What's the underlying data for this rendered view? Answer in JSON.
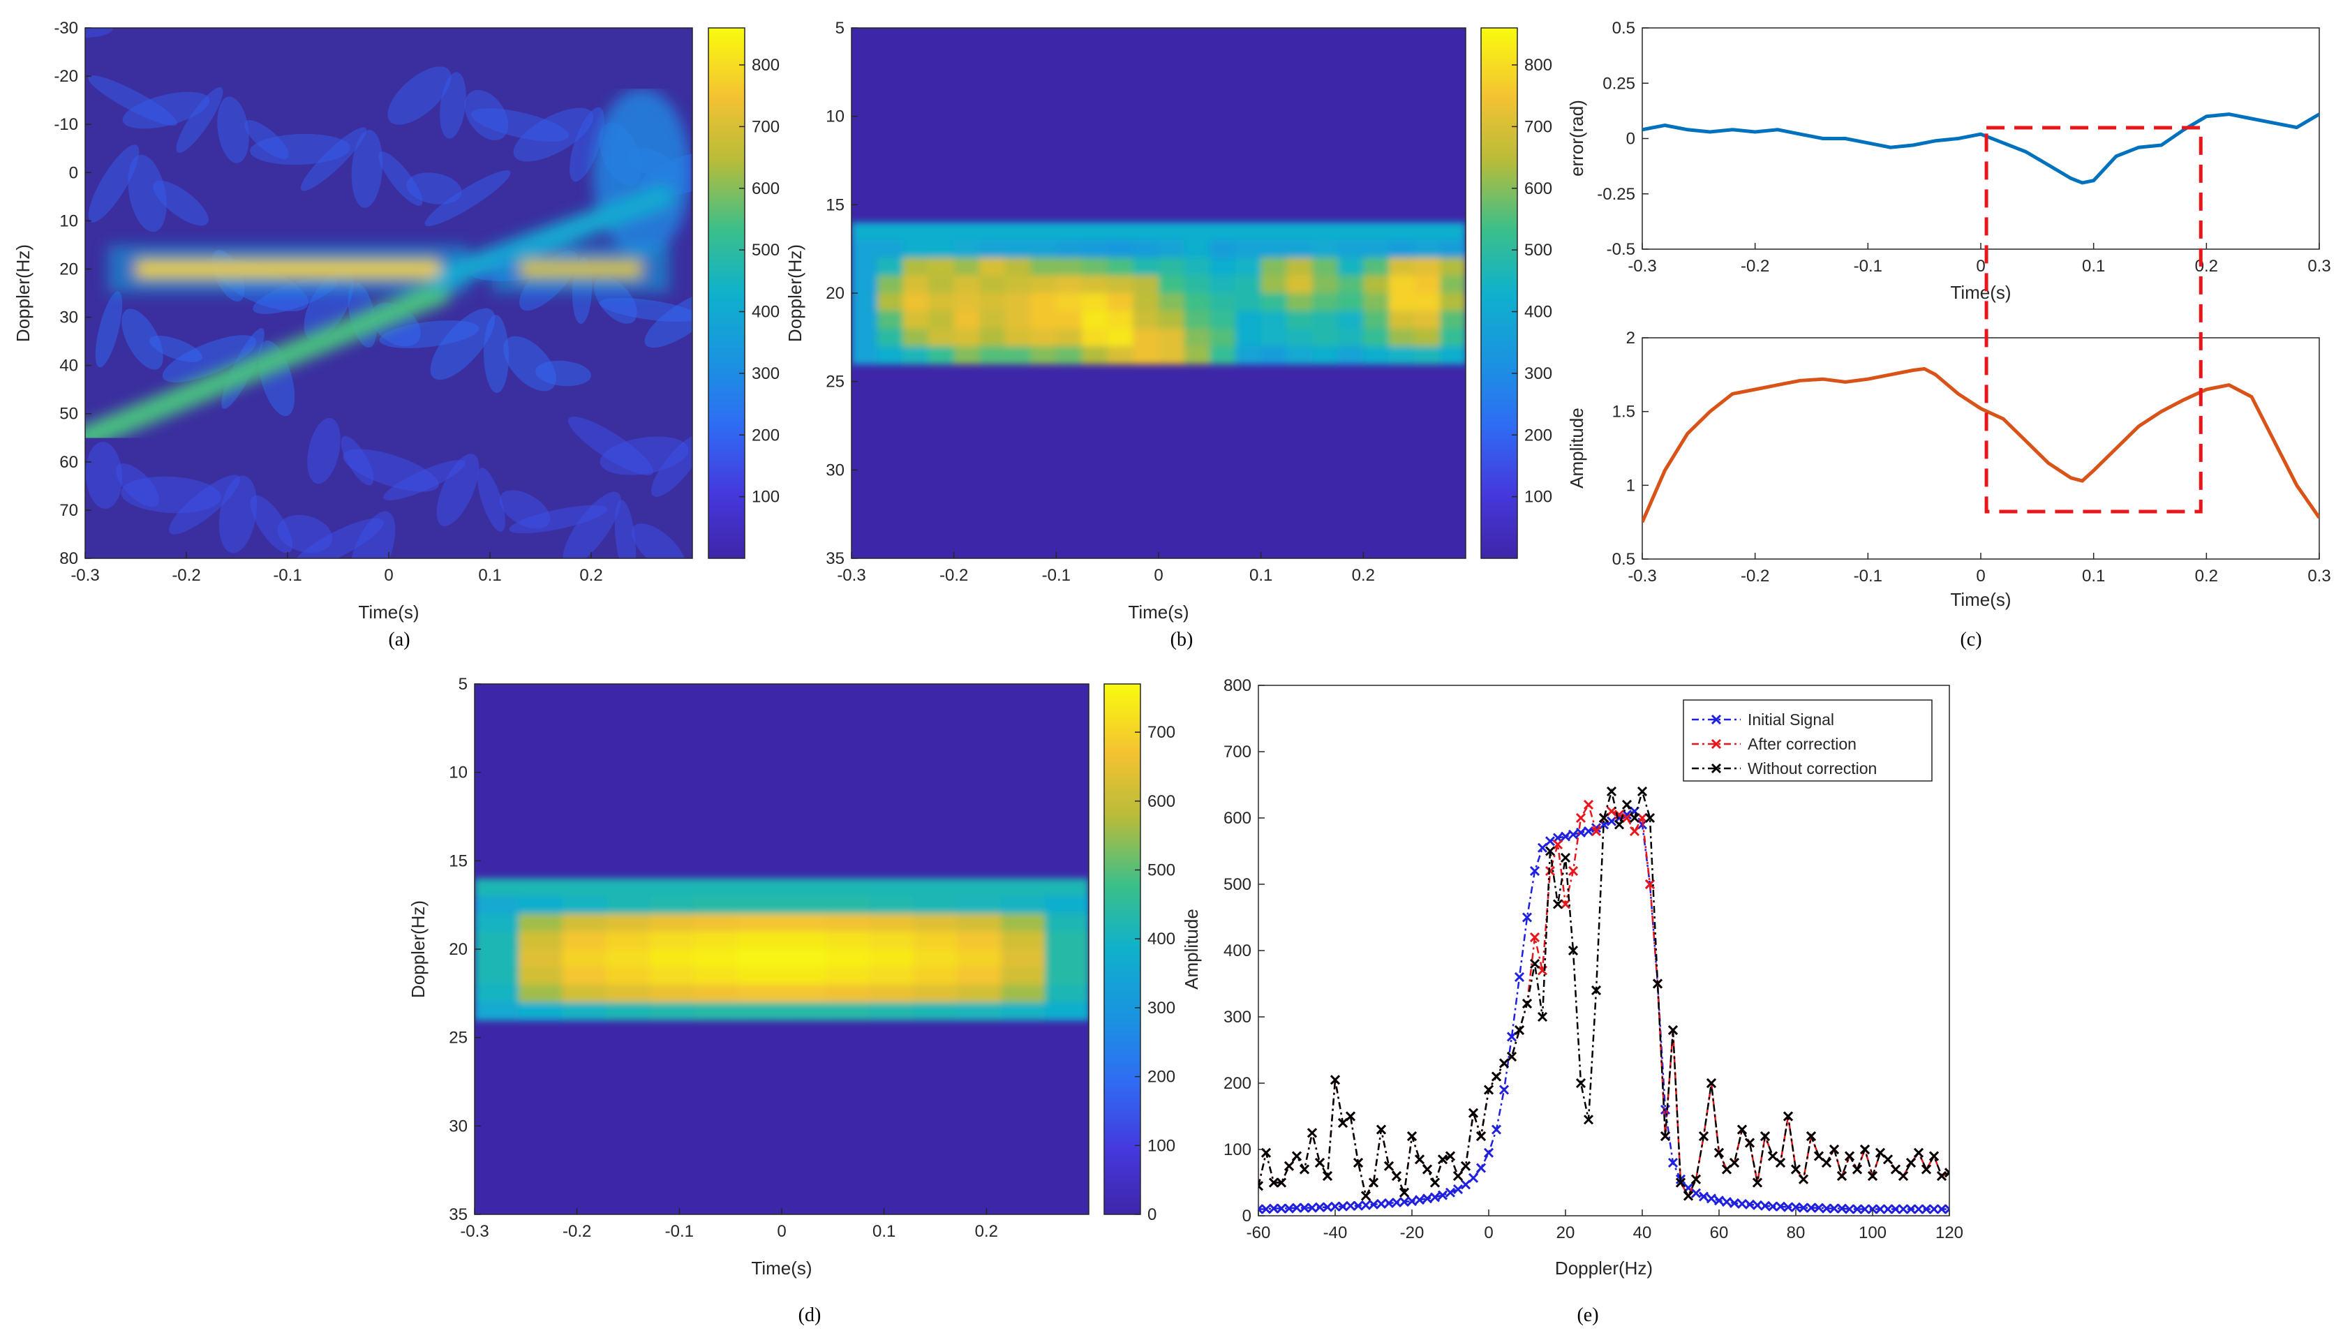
{
  "chart_data": [
    {
      "panel": "a",
      "caption": "(a)",
      "type": "heatmap",
      "xlabel": "Time(s)",
      "ylabel": "Doppler(Hz)",
      "xlim": [
        -0.3,
        0.3
      ],
      "ylim": [
        -30,
        80
      ],
      "xticks": [
        "-0.3",
        "-0.2",
        "-0.1",
        "0",
        "0.1",
        "0.2"
      ],
      "yticks": [
        "-30",
        "-20",
        "-10",
        "0",
        "10",
        "20",
        "30",
        "40",
        "50",
        "60",
        "70",
        "80"
      ],
      "colorbar": {
        "min": 0,
        "max": 860,
        "ticks": [
          "100",
          "200",
          "300",
          "400",
          "500",
          "600",
          "700",
          "800"
        ]
      },
      "features": [
        {
          "name": "main-line",
          "doppler_hz": 20,
          "t_range": [
            -0.25,
            0.05
          ],
          "level": 800
        },
        {
          "name": "chirp-branch",
          "from": [
            -0.3,
            55
          ],
          "to": [
            0.05,
            25
          ],
          "level": 550
        },
        {
          "name": "right-branch",
          "from": [
            0.05,
            22
          ],
          "to": [
            0.27,
            5
          ],
          "level": 400
        },
        {
          "name": "right-line",
          "doppler_hz": 20,
          "t_range": [
            0.13,
            0.25
          ],
          "level": 700
        }
      ]
    },
    {
      "panel": "b",
      "caption": "(b)",
      "type": "heatmap",
      "xlabel": "Time(s)",
      "ylabel": "Doppler(Hz)",
      "xlim": [
        -0.3,
        0.3
      ],
      "ylim": [
        5,
        35
      ],
      "xticks": [
        "-0.3",
        "-0.2",
        "-0.1",
        "0",
        "0.1",
        "0.2"
      ],
      "yticks": [
        "5",
        "10",
        "15",
        "20",
        "25",
        "30",
        "35"
      ],
      "colorbar": {
        "min": 0,
        "max": 860,
        "ticks": [
          "100",
          "200",
          "300",
          "400",
          "500",
          "600",
          "700",
          "800"
        ]
      },
      "band_doppler_hz": [
        16,
        24
      ],
      "rows": [
        {
          "doppler_hz": 17,
          "values": [
            380,
            380,
            420,
            420,
            400,
            380,
            380,
            380,
            360,
            350,
            340,
            360,
            380,
            420,
            360,
            380,
            380,
            380,
            400,
            380,
            380,
            360,
            380,
            360
          ]
        },
        {
          "doppler_hz": 18,
          "values": [
            380,
            460,
            640,
            660,
            620,
            700,
            650,
            600,
            600,
            580,
            550,
            480,
            500,
            460,
            420,
            440,
            600,
            650,
            580,
            450,
            560,
            700,
            720,
            640
          ]
        },
        {
          "doppler_hz": 19,
          "values": [
            380,
            600,
            700,
            650,
            700,
            660,
            680,
            700,
            720,
            700,
            680,
            650,
            540,
            500,
            460,
            480,
            620,
            700,
            600,
            560,
            640,
            780,
            760,
            600
          ]
        },
        {
          "doppler_hz": 20,
          "values": [
            380,
            640,
            740,
            700,
            720,
            700,
            720,
            760,
            780,
            800,
            760,
            660,
            600,
            540,
            500,
            480,
            520,
            600,
            560,
            540,
            600,
            780,
            780,
            640
          ]
        },
        {
          "doppler_hz": 21,
          "values": [
            380,
            560,
            700,
            660,
            740,
            680,
            720,
            760,
            760,
            820,
            800,
            680,
            640,
            560,
            520,
            420,
            440,
            500,
            480,
            440,
            560,
            700,
            720,
            560
          ]
        },
        {
          "doppler_hz": 22,
          "values": [
            380,
            500,
            620,
            680,
            700,
            640,
            700,
            720,
            700,
            800,
            820,
            740,
            720,
            600,
            560,
            420,
            440,
            460,
            480,
            460,
            520,
            620,
            640,
            520
          ]
        },
        {
          "doppler_hz": 23,
          "values": [
            380,
            420,
            460,
            520,
            600,
            560,
            560,
            600,
            580,
            640,
            700,
            740,
            720,
            620,
            520,
            380,
            360,
            400,
            420,
            380,
            420,
            440,
            460,
            420
          ]
        }
      ]
    },
    {
      "panel": "c",
      "caption": "(c)",
      "subplots": [
        {
          "type": "line",
          "ylabel": "error(rad)",
          "xlabel": "Time(s)",
          "xlim": [
            -0.3,
            0.3
          ],
          "ylim": [
            -0.5,
            0.5
          ],
          "xticks": [
            "-0.3",
            "-0.2",
            "-0.1",
            "0",
            "0.1",
            "0.2",
            "0.3"
          ],
          "yticks": [
            "-0.5",
            "-0.25",
            "0",
            "0.25",
            "0.5"
          ],
          "color": "#0072BD",
          "x": [
            -0.3,
            -0.28,
            -0.26,
            -0.24,
            -0.22,
            -0.2,
            -0.18,
            -0.16,
            -0.14,
            -0.12,
            -0.1,
            -0.08,
            -0.06,
            -0.04,
            -0.02,
            0,
            0.02,
            0.04,
            0.06,
            0.08,
            0.09,
            0.1,
            0.12,
            0.14,
            0.16,
            0.18,
            0.2,
            0.22,
            0.24,
            0.26,
            0.28,
            0.3
          ],
          "y": [
            0.04,
            0.06,
            0.04,
            0.03,
            0.04,
            0.03,
            0.04,
            0.02,
            0.0,
            0.0,
            -0.02,
            -0.04,
            -0.03,
            -0.01,
            0.0,
            0.02,
            -0.02,
            -0.06,
            -0.12,
            -0.18,
            -0.2,
            -0.19,
            -0.08,
            -0.04,
            -0.03,
            0.04,
            0.1,
            0.11,
            0.09,
            0.07,
            0.05,
            0.11
          ]
        },
        {
          "type": "line",
          "ylabel": "Amplitude",
          "xlabel": "Time(s)",
          "xlim": [
            -0.3,
            0.3
          ],
          "ylim": [
            0.5,
            2
          ],
          "xticks": [
            "-0.3",
            "-0.2",
            "-0.1",
            "0",
            "0.1",
            "0.2",
            "0.3"
          ],
          "yticks": [
            "0.5",
            "1",
            "1.5",
            "2"
          ],
          "color": "#D95319",
          "x": [
            -0.3,
            -0.28,
            -0.26,
            -0.24,
            -0.22,
            -0.2,
            -0.18,
            -0.16,
            -0.14,
            -0.12,
            -0.1,
            -0.08,
            -0.06,
            -0.05,
            -0.04,
            -0.02,
            0,
            0.02,
            0.04,
            0.06,
            0.08,
            0.09,
            0.1,
            0.12,
            0.14,
            0.16,
            0.18,
            0.2,
            0.22,
            0.24,
            0.26,
            0.28,
            0.3
          ],
          "y": [
            0.75,
            1.1,
            1.35,
            1.5,
            1.62,
            1.65,
            1.68,
            1.71,
            1.72,
            1.7,
            1.72,
            1.75,
            1.78,
            1.79,
            1.75,
            1.62,
            1.52,
            1.45,
            1.3,
            1.15,
            1.05,
            1.03,
            1.1,
            1.25,
            1.4,
            1.5,
            1.58,
            1.65,
            1.68,
            1.6,
            1.3,
            1.0,
            0.78
          ]
        }
      ],
      "annotation": {
        "type": "dashed-rectangle",
        "color": "#E8161A",
        "t_range": [
          0.005,
          0.195
        ]
      }
    },
    {
      "panel": "d",
      "caption": "(d)",
      "type": "heatmap",
      "xlabel": "Time(s)",
      "ylabel": "Doppler(Hz)",
      "xlim": [
        -0.3,
        0.3
      ],
      "ylim": [
        5,
        35
      ],
      "xticks": [
        "-0.3",
        "-0.2",
        "-0.1",
        "0",
        "0.1",
        "0.2"
      ],
      "yticks": [
        "5",
        "10",
        "15",
        "20",
        "25",
        "30",
        "35"
      ],
      "colorbar": {
        "min": 0,
        "max": 770,
        "ticks": [
          "0",
          "100",
          "200",
          "300",
          "400",
          "500",
          "600",
          "700"
        ]
      },
      "band_doppler_hz": [
        16,
        24
      ],
      "rows": [
        {
          "doppler_hz": 17,
          "values": [
            360,
            380,
            400,
            420,
            430,
            440,
            440,
            440,
            440,
            430,
            420,
            410,
            400,
            380
          ]
        },
        {
          "doppler_hz": 18,
          "values": [
            400,
            560,
            620,
            640,
            660,
            670,
            680,
            680,
            670,
            660,
            640,
            620,
            560,
            420
          ]
        },
        {
          "doppler_hz": 19,
          "values": [
            420,
            620,
            680,
            700,
            720,
            730,
            740,
            740,
            730,
            720,
            700,
            680,
            620,
            440
          ]
        },
        {
          "doppler_hz": 20,
          "values": [
            420,
            640,
            700,
            720,
            740,
            750,
            760,
            760,
            750,
            740,
            720,
            700,
            640,
            440
          ]
        },
        {
          "doppler_hz": 21,
          "values": [
            420,
            620,
            680,
            700,
            720,
            730,
            740,
            740,
            730,
            720,
            700,
            680,
            620,
            440
          ]
        },
        {
          "doppler_hz": 22,
          "values": [
            400,
            560,
            620,
            640,
            660,
            670,
            680,
            680,
            670,
            660,
            640,
            620,
            560,
            420
          ]
        },
        {
          "doppler_hz": 23,
          "values": [
            360,
            380,
            400,
            420,
            430,
            440,
            440,
            440,
            440,
            430,
            420,
            410,
            400,
            380
          ]
        }
      ]
    },
    {
      "panel": "e",
      "caption": "(e)",
      "type": "line",
      "xlabel": "Doppler(Hz)",
      "ylabel": "Amplitude",
      "xlim": [
        -60,
        120
      ],
      "ylim": [
        0,
        800
      ],
      "xticks": [
        "-60",
        "-40",
        "-20",
        "0",
        "20",
        "40",
        "60",
        "80",
        "100",
        "120"
      ],
      "yticks": [
        "0",
        "100",
        "200",
        "300",
        "400",
        "500",
        "600",
        "700",
        "800"
      ],
      "x": [
        -60,
        -58,
        -56,
        -54,
        -52,
        -50,
        -48,
        -46,
        -44,
        -42,
        -40,
        -38,
        -36,
        -34,
        -32,
        -30,
        -28,
        -26,
        -24,
        -22,
        -20,
        -18,
        -16,
        -14,
        -12,
        -10,
        -8,
        -6,
        -4,
        -2,
        0,
        2,
        4,
        6,
        8,
        10,
        12,
        14,
        16,
        18,
        20,
        22,
        24,
        26,
        28,
        30,
        32,
        34,
        36,
        38,
        40,
        42,
        44,
        46,
        48,
        50,
        52,
        54,
        56,
        58,
        60,
        62,
        64,
        66,
        68,
        70,
        72,
        74,
        76,
        78,
        80,
        82,
        84,
        86,
        88,
        90,
        92,
        94,
        96,
        98,
        100,
        102,
        104,
        106,
        108,
        110,
        112,
        114,
        116,
        118,
        120
      ],
      "series": [
        {
          "name": "Initial Signal",
          "color": "#1F1FE0",
          "values": [
            10,
            10,
            11,
            11,
            11,
            12,
            12,
            12,
            13,
            13,
            14,
            14,
            15,
            15,
            16,
            17,
            18,
            19,
            20,
            21,
            22,
            24,
            26,
            28,
            31,
            35,
            40,
            47,
            57,
            72,
            95,
            130,
            190,
            270,
            360,
            450,
            520,
            555,
            565,
            570,
            572,
            575,
            578,
            580,
            585,
            590,
            595,
            600,
            605,
            610,
            590,
            500,
            350,
            160,
            80,
            55,
            42,
            34,
            29,
            26,
            23,
            21,
            19,
            18,
            17,
            16,
            15,
            14,
            14,
            13,
            13,
            12,
            12,
            12,
            11,
            11,
            11,
            10,
            10,
            10,
            10,
            10,
            10,
            10,
            10,
            10,
            10,
            10,
            10,
            10,
            10
          ]
        },
        {
          "name": "After correction",
          "color": "#E8161A",
          "values": [
            45,
            95,
            50,
            50,
            75,
            90,
            70,
            125,
            80,
            60,
            205,
            140,
            150,
            80,
            30,
            50,
            130,
            75,
            60,
            35,
            120,
            85,
            70,
            50,
            85,
            90,
            60,
            75,
            155,
            120,
            190,
            210,
            230,
            240,
            280,
            320,
            420,
            370,
            520,
            560,
            470,
            520,
            600,
            620,
            580,
            600,
            610,
            605,
            600,
            580,
            600,
            500,
            350,
            120,
            280,
            50,
            30,
            55,
            120,
            200,
            95,
            70,
            80,
            130,
            110,
            50,
            120,
            90,
            80,
            150,
            70,
            55,
            120,
            90,
            80,
            100,
            60,
            90,
            70,
            100,
            60,
            95,
            85,
            70,
            60,
            80,
            95,
            70,
            90,
            60,
            65
          ]
        },
        {
          "name": "Without correction",
          "color": "#000000",
          "values": [
            45,
            95,
            50,
            50,
            75,
            90,
            70,
            125,
            80,
            60,
            205,
            140,
            150,
            80,
            30,
            50,
            130,
            75,
            60,
            35,
            120,
            85,
            70,
            50,
            85,
            90,
            60,
            75,
            155,
            120,
            190,
            210,
            230,
            240,
            280,
            320,
            380,
            300,
            550,
            470,
            540,
            400,
            200,
            145,
            340,
            600,
            640,
            590,
            620,
            600,
            640,
            600,
            350,
            120,
            280,
            50,
            30,
            55,
            120,
            200,
            95,
            70,
            80,
            130,
            110,
            50,
            120,
            90,
            80,
            150,
            70,
            55,
            120,
            90,
            80,
            100,
            60,
            90,
            70,
            100,
            60,
            95,
            85,
            70,
            60,
            80,
            95,
            70,
            90,
            60,
            65
          ]
        }
      ],
      "legend_position": "top-right"
    }
  ]
}
